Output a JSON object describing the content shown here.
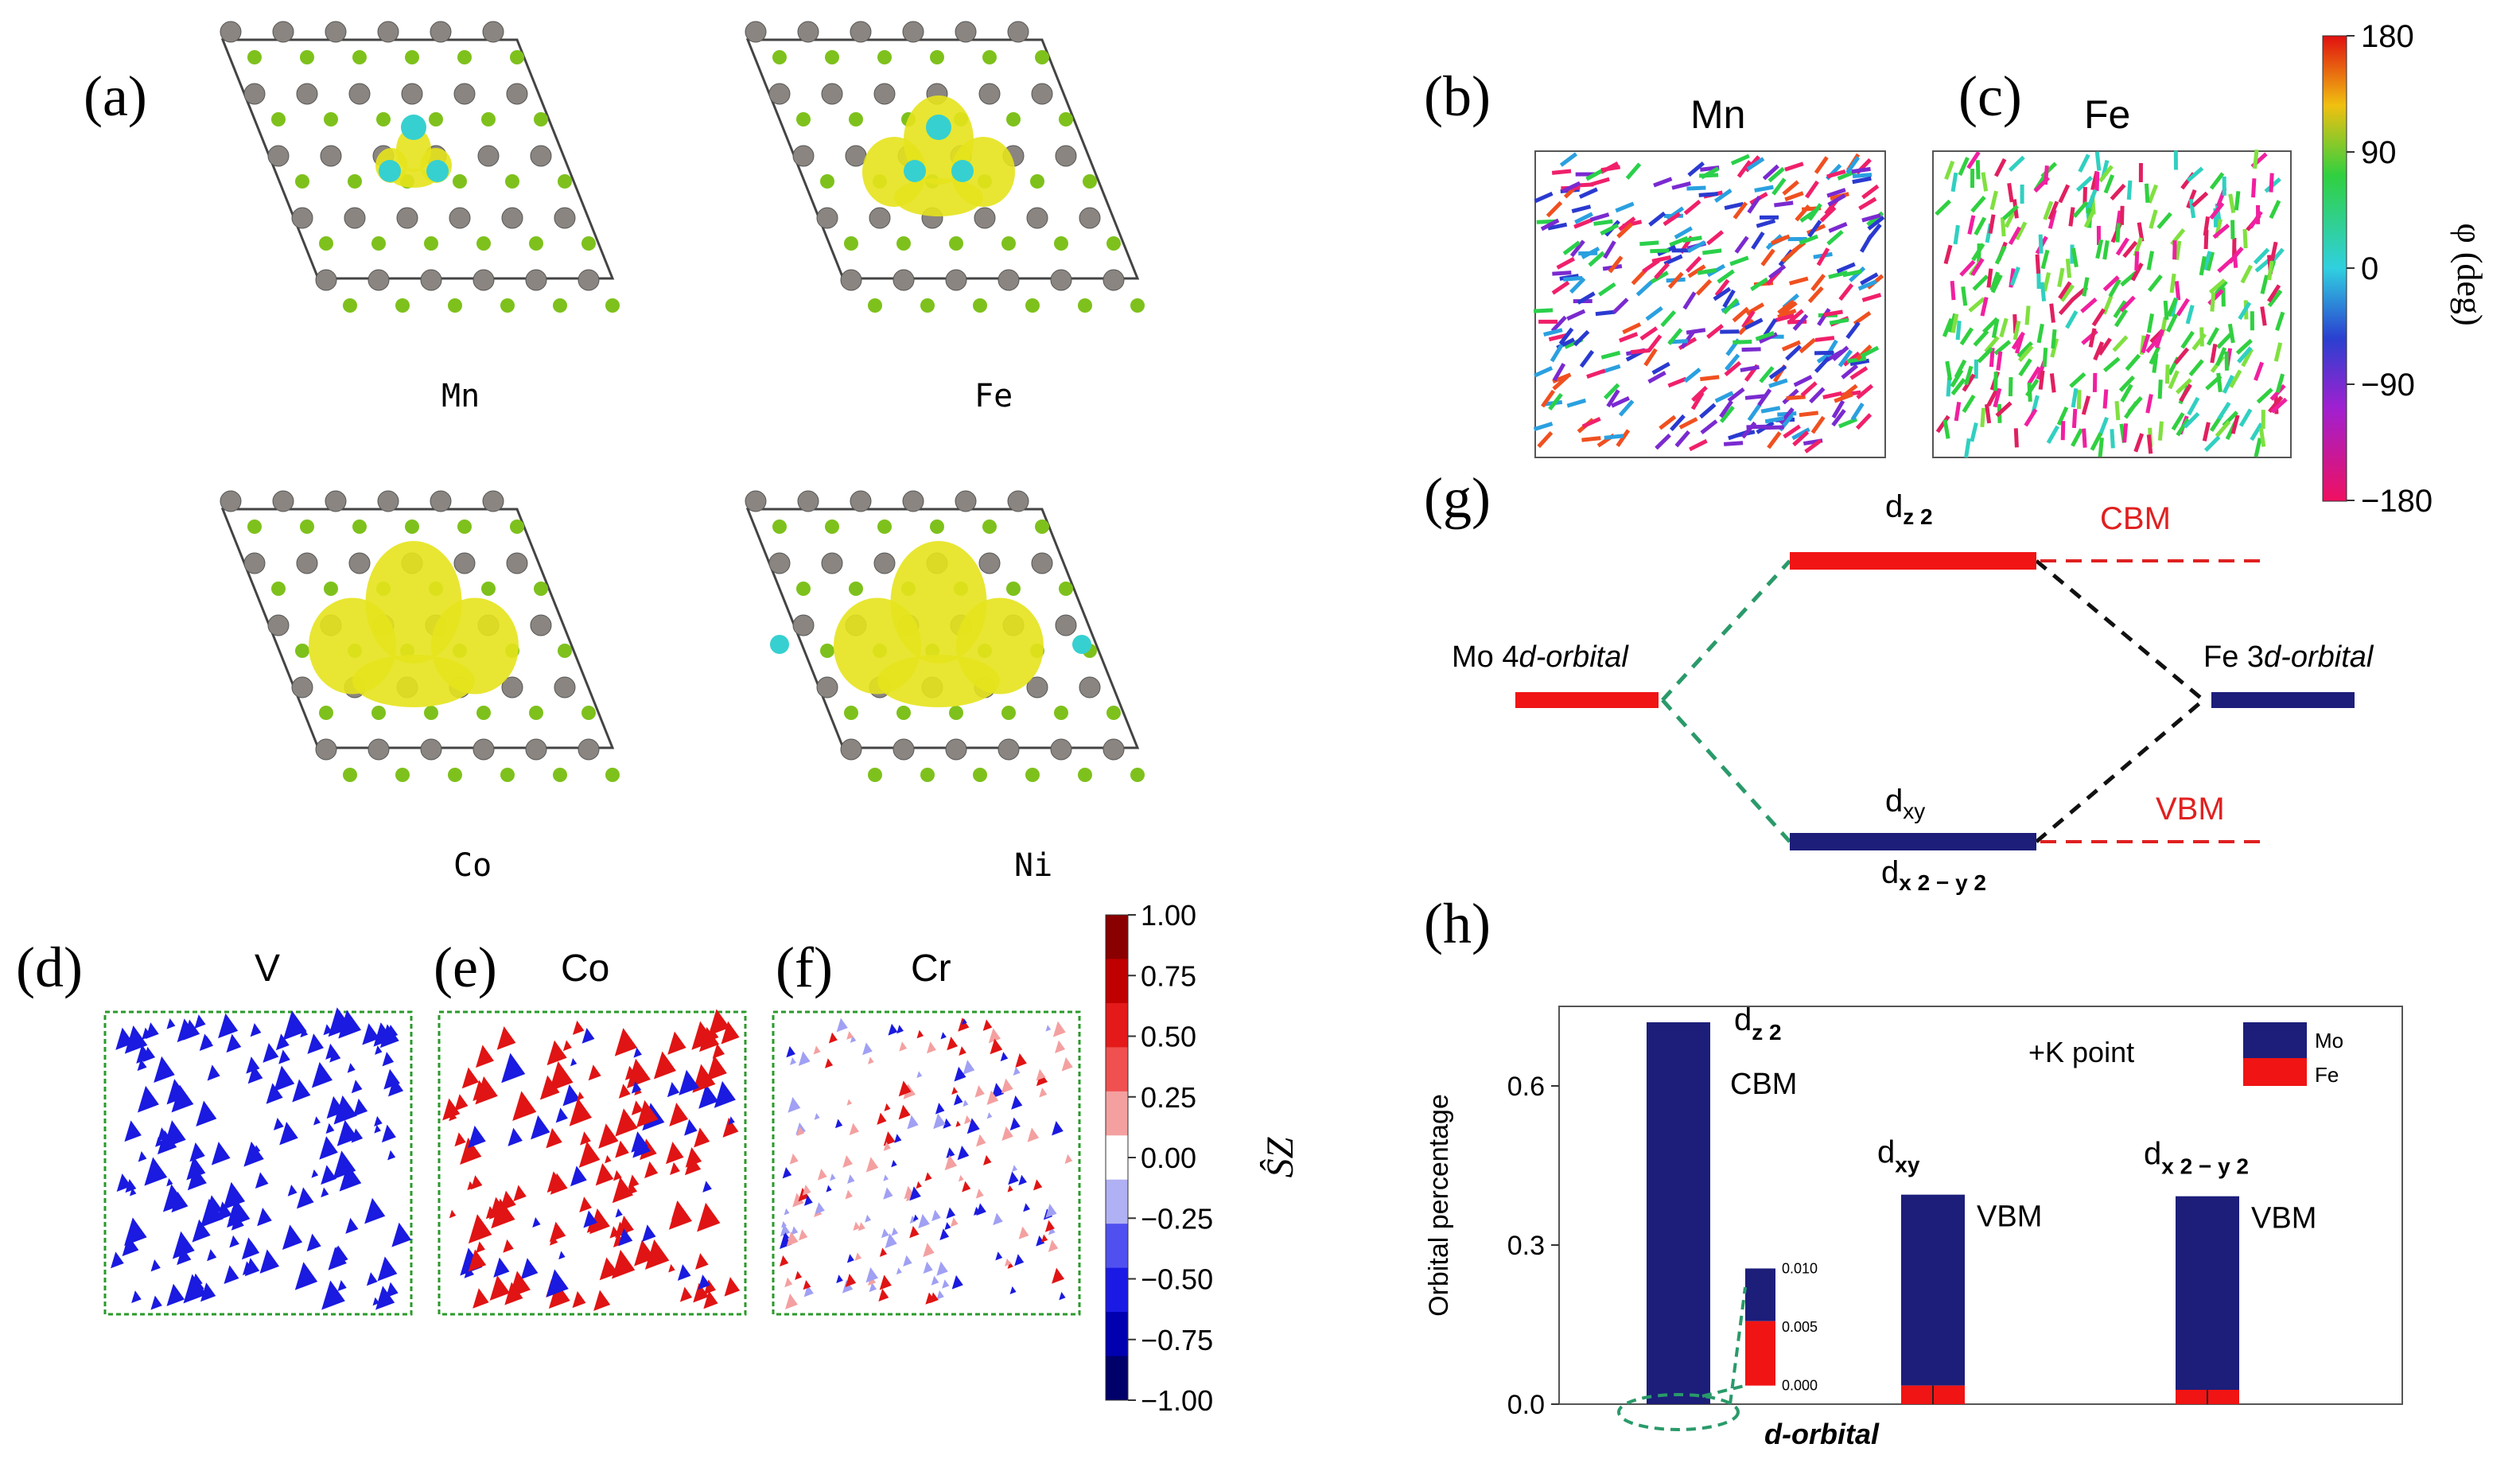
{
  "panel_labels": {
    "a": "(a)",
    "b": "(b)",
    "c": "(c)",
    "d": "(d)",
    "e": "(e)",
    "f": "(f)",
    "g": "(g)",
    "h": "(h)"
  },
  "panel_a": {
    "lattices": [
      "Mn",
      "Fe",
      "Co",
      "Ni"
    ]
  },
  "panel_bc": {
    "titles": [
      "Mn",
      "Fe"
    ],
    "colorbar": {
      "label": "φ (deg)",
      "ticks": [
        "180",
        "90",
        "0",
        "−90",
        "−180"
      ]
    }
  },
  "panel_def": {
    "titles": [
      "V",
      "Co",
      "Cr"
    ],
    "colorbar": {
      "label": "ŜZ",
      "ticks": [
        "1.00",
        "0.75",
        "0.50",
        "0.25",
        "0.00",
        "−0.25",
        "−0.50",
        "−0.75",
        "−1.00"
      ]
    }
  },
  "panel_g": {
    "left_label": "Mo 4",
    "left_label_italic": "d-orbital",
    "right_label": "Fe 3",
    "right_label_italic": "d-orbital",
    "top_level": "d",
    "top_sub": "z 2",
    "cbm": "CBM",
    "bottom_level": "d",
    "bottom_sub": "xy",
    "bottom_level2": "d",
    "bottom_sub2": "x 2 − y 2",
    "vbm": "VBM",
    "colors": {
      "red": "#f01414",
      "navy": "#1c1e7a",
      "green_dash": "#2a9a6a",
      "red_dash": "#e02020"
    }
  },
  "chart_data": {
    "type": "bar",
    "xlabel": "d-orbital",
    "ylabel": "Orbital percentage",
    "ylim": [
      0,
      0.75
    ],
    "yticks": [
      "0.0",
      "0.3",
      "0.6"
    ],
    "annotation": "+K  point",
    "categories": [
      "dz2",
      "dxy",
      "dx2-y2"
    ],
    "series": [
      {
        "name": "Mo",
        "color": "#1c1e7a",
        "values": [
          0.72,
          0.36,
          0.365
        ]
      },
      {
        "name": "Fe",
        "color": "#f01414",
        "values": [
          0.0,
          0.035,
          0.027
        ]
      }
    ],
    "bar_labels": [
      {
        "main": "d",
        "sub": "z 2",
        "tag": "CBM"
      },
      {
        "main": "d",
        "sub": "xy",
        "tag": "VBM"
      },
      {
        "main": "d",
        "sub": "x 2 − y 2",
        "tag": "VBM"
      }
    ],
    "inset": {
      "yticks": [
        "0.010",
        "0.005",
        "0.000"
      ],
      "Mo_top": 0.01,
      "Fe_top": 0.0055
    }
  }
}
